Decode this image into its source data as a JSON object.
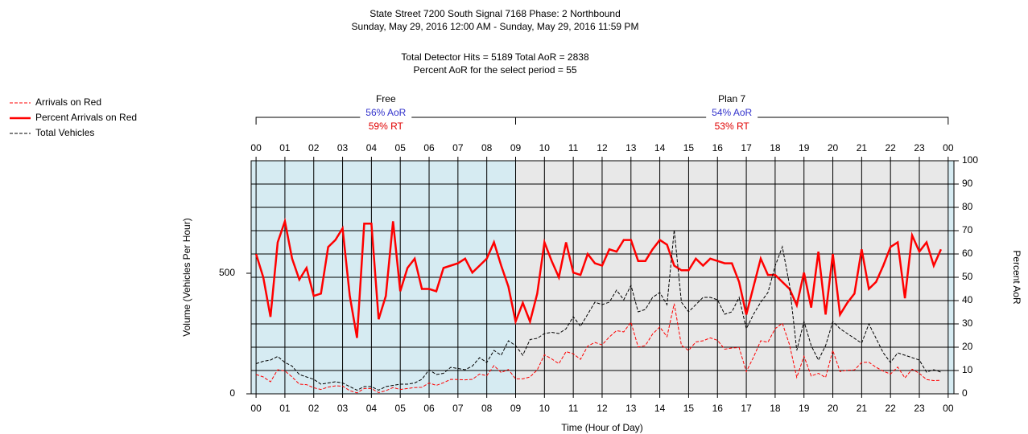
{
  "chart_data": {
    "type": "line",
    "title": "State Street 7200 South Signal 7168 Phase: 2 Northbound",
    "subtitle": "Sunday, May 29, 2016 12:00 AM - Sunday, May 29, 2016 11:59 PM",
    "summary": [
      "Total Detector Hits = 5189 Total AoR = 2838",
      "Percent AoR for the select period = 55"
    ],
    "xlabel": "Time (Hour of Day)",
    "ylabel": "Volume (Vehicles Per Hour)",
    "y2label": "Percent AoR",
    "legend": "top-left",
    "grid": true,
    "xlim": [
      -0.17,
      24.2
    ],
    "xticks": [
      {
        "value": 0,
        "label": "00"
      },
      {
        "value": 1,
        "label": "01"
      },
      {
        "value": 2,
        "label": "02"
      },
      {
        "value": 3,
        "label": "03"
      },
      {
        "value": 4,
        "label": "04"
      },
      {
        "value": 5,
        "label": "05"
      },
      {
        "value": 6,
        "label": "06"
      },
      {
        "value": 7,
        "label": "07"
      },
      {
        "value": 8,
        "label": "08"
      },
      {
        "value": 9,
        "label": "09"
      },
      {
        "value": 10,
        "label": "10"
      },
      {
        "value": 11,
        "label": "11"
      },
      {
        "value": 12,
        "label": "12"
      },
      {
        "value": 13,
        "label": "13"
      },
      {
        "value": 14,
        "label": "14"
      },
      {
        "value": 15,
        "label": "15"
      },
      {
        "value": 16,
        "label": "16"
      },
      {
        "value": 17,
        "label": "17"
      },
      {
        "value": 18,
        "label": "18"
      },
      {
        "value": 19,
        "label": "19"
      },
      {
        "value": 20,
        "label": "20"
      },
      {
        "value": 21,
        "label": "21"
      },
      {
        "value": 22,
        "label": "22"
      },
      {
        "value": 23,
        "label": "23"
      },
      {
        "value": 24,
        "label": "00"
      }
    ],
    "ylim": [
      0,
      966.7
    ],
    "yticks": [
      0,
      500
    ],
    "y2lim": [
      0,
      100
    ],
    "y2ticks": [
      0,
      10,
      20,
      30,
      40,
      50,
      60,
      70,
      80,
      90,
      100
    ],
    "plans": [
      {
        "name": "Free",
        "aor": "56% AoR",
        "rt": "59% RT",
        "start": 0,
        "end": 9,
        "color": "#d6ebf2"
      },
      {
        "name": "Plan 7",
        "aor": "54% AoR",
        "rt": "53% RT",
        "start": 9,
        "end": 24,
        "color": "#e8e8e8"
      }
    ],
    "x": [
      0,
      0.25,
      0.5,
      0.75,
      1,
      1.25,
      1.5,
      1.75,
      2,
      2.25,
      2.5,
      2.75,
      3,
      3.25,
      3.5,
      3.75,
      4,
      4.25,
      4.5,
      4.75,
      5,
      5.25,
      5.5,
      5.75,
      6,
      6.25,
      6.5,
      6.75,
      7,
      7.25,
      7.5,
      7.75,
      8,
      8.25,
      8.5,
      8.75,
      9,
      9.25,
      9.5,
      9.75,
      10,
      10.25,
      10.5,
      10.75,
      11,
      11.25,
      11.5,
      11.75,
      12,
      12.25,
      12.5,
      12.75,
      13,
      13.25,
      13.5,
      13.75,
      14,
      14.25,
      14.5,
      14.75,
      15,
      15.25,
      15.5,
      15.75,
      16,
      16.25,
      16.5,
      16.75,
      17,
      17.25,
      17.5,
      17.75,
      18,
      18.25,
      18.5,
      18.75,
      19,
      19.25,
      19.5,
      19.75,
      20,
      20.25,
      20.5,
      20.75,
      21,
      21.25,
      21.5,
      21.75,
      22,
      22.25,
      22.5,
      22.75,
      23,
      23.25,
      23.5,
      23.75
    ],
    "series": [
      {
        "name": "Arrivals on Red",
        "color": "#ff0000",
        "dash": true,
        "width": 1,
        "axis": "y",
        "values": [
          80,
          70,
          50,
          100,
          95,
          70,
          40,
          38,
          25,
          18,
          28,
          33,
          32,
          13,
          4,
          22,
          22,
          5,
          13,
          26,
          18,
          22,
          26,
          27,
          45,
          35,
          46,
          60,
          59,
          58,
          60,
          82,
          75,
          117,
          88,
          101,
          62,
          62,
          70,
          99,
          162,
          145,
          125,
          175,
          166,
          143,
          198,
          213,
          203,
          236,
          262,
          257,
          297,
          194,
          200,
          248,
          277,
          237,
          374,
          201,
          180,
          215,
          220,
          232,
          222,
          185,
          190,
          192,
          92,
          152,
          220,
          214,
          270,
          293,
          203,
          68,
          156,
          74,
          85,
          68,
          180,
          92,
          98,
          99,
          130,
          131,
          110,
          94,
          82,
          111,
          66,
          102,
          85,
          59,
          55,
          56
        ]
      },
      {
        "name": "Percent Arrivals on Red",
        "color": "#ff0000",
        "dash": false,
        "width": 2.5,
        "axis": "y2",
        "values": [
          60,
          50,
          33,
          65,
          74,
          58,
          49,
          54,
          42,
          43,
          63,
          66,
          71,
          42,
          24,
          73,
          73,
          32,
          42,
          74,
          44,
          54,
          58,
          45,
          45,
          44,
          54,
          55,
          56,
          58,
          52,
          55,
          58,
          65,
          55,
          46,
          31,
          39,
          31,
          43,
          65,
          57,
          50,
          65,
          52,
          51,
          60,
          56,
          55,
          62,
          61,
          66,
          66,
          57,
          57,
          62,
          66,
          64,
          55,
          53,
          53,
          58,
          55,
          58,
          57,
          56,
          56,
          48,
          34,
          46,
          58,
          51,
          51,
          48,
          45,
          38,
          52,
          37,
          61,
          34,
          60,
          34,
          39,
          43,
          62,
          45,
          48,
          55,
          63,
          65,
          41,
          68,
          61,
          65,
          55,
          62
        ]
      },
      {
        "name": "Total Vehicles",
        "color": "#000000",
        "dash": true,
        "width": 1,
        "axis": "y",
        "values": [
          125,
          135,
          140,
          155,
          130,
          115,
          80,
          70,
          60,
          40,
          45,
          50,
          45,
          30,
          15,
          30,
          30,
          15,
          30,
          35,
          40,
          40,
          45,
          60,
          100,
          80,
          85,
          110,
          105,
          100,
          115,
          150,
          130,
          180,
          160,
          220,
          200,
          160,
          225,
          230,
          250,
          255,
          250,
          270,
          320,
          280,
          330,
          380,
          370,
          380,
          430,
          390,
          450,
          340,
          350,
          400,
          420,
          370,
          680,
          380,
          340,
          370,
          400,
          400,
          390,
          330,
          340,
          400,
          270,
          330,
          380,
          420,
          530,
          610,
          450,
          180,
          300,
          200,
          140,
          200,
          300,
          270,
          250,
          230,
          210,
          290,
          230,
          170,
          130,
          170,
          160,
          150,
          140,
          90,
          100,
          90
        ]
      }
    ]
  }
}
